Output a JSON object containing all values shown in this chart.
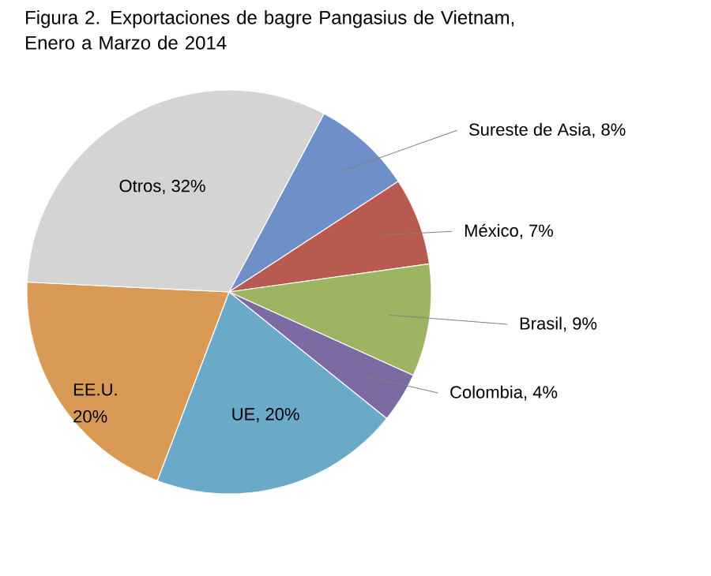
{
  "chart_data": {
    "type": "pie",
    "title": "Figura 2.   Exportaciones de bagre Pangasius de Vietnam, Enero a Marzo de 2014",
    "categories": [
      "Sureste de Asia, 8%",
      "México, 7%",
      "Brasil, 9%",
      "Colombia, 4%",
      "UE, 20%",
      "EE.U. 20%",
      "Otros, 32%"
    ],
    "values": [
      8,
      7,
      9,
      4,
      20,
      20,
      32
    ],
    "colors": [
      "#6f8fc8",
      "#b85a50",
      "#9db562",
      "#7e6aa3",
      "#6aa9c8",
      "#d99a55",
      "#d4d4d4"
    ]
  }
}
